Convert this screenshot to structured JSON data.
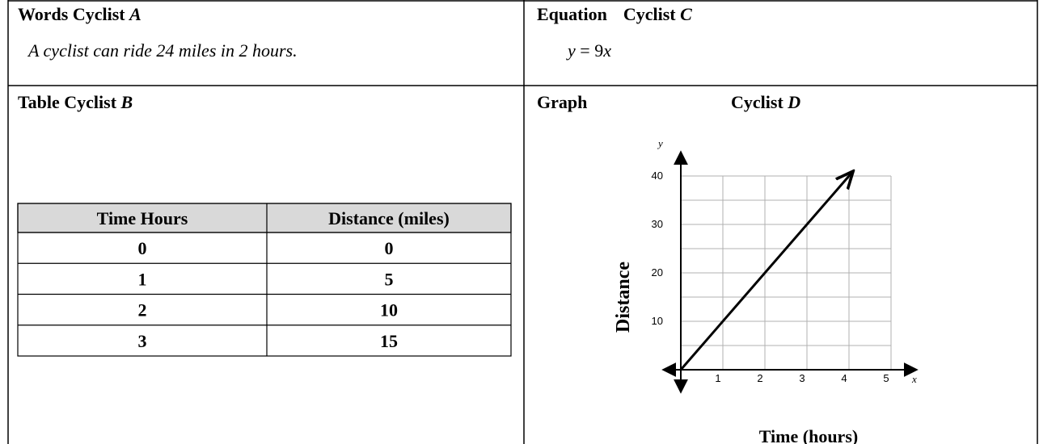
{
  "words": {
    "label": "Words",
    "name": "Cyclist",
    "letter": "A",
    "text": "A cyclist can ride 24 miles in 2 hours."
  },
  "equation": {
    "label": "Equation",
    "name": "Cyclist",
    "letter": "C",
    "parts": [
      "y",
      "=",
      "9",
      "x"
    ]
  },
  "table": {
    "label": "Table",
    "name": "Cyclist",
    "letter": "B",
    "headers": [
      "Time Hours",
      "Distance (miles)"
    ],
    "rows": [
      [
        0,
        0
      ],
      [
        1,
        5
      ],
      [
        2,
        10
      ],
      [
        3,
        15
      ]
    ]
  },
  "graph": {
    "label": "Graph",
    "name": "Cyclist",
    "letter": "D",
    "x_axis_label": "Time (hours)",
    "y_axis_label": "Distance",
    "x_var": "x",
    "y_var": "y",
    "xlim": [
      0,
      5
    ],
    "ylim": [
      0,
      40
    ],
    "xticks": [
      1,
      2,
      3,
      4,
      5
    ],
    "yticks": [
      10,
      20,
      30,
      40
    ],
    "yminor": [
      5,
      15,
      25,
      35
    ],
    "line": {
      "x": [
        0,
        4.1
      ],
      "y": [
        0,
        41
      ]
    }
  }
}
